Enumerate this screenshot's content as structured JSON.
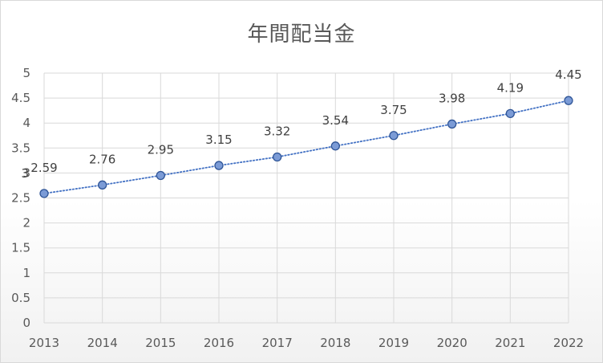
{
  "chart_data": {
    "type": "line",
    "title": "年間配当金",
    "xlabel": "",
    "ylabel": "",
    "categories": [
      "2013",
      "2014",
      "2015",
      "2016",
      "2017",
      "2018",
      "2019",
      "2020",
      "2021",
      "2022"
    ],
    "series": [
      {
        "values": [
          2.59,
          2.76,
          2.95,
          3.15,
          3.32,
          3.54,
          3.75,
          3.98,
          4.19,
          4.45
        ],
        "data_labels": [
          "2.59",
          "2.76",
          "2.95",
          "3.15",
          "3.32",
          "3.54",
          "3.75",
          "3.98",
          "4.19",
          "4.45"
        ],
        "line_color": "#4472c4",
        "line_style": "dotted",
        "marker": "circle",
        "marker_fill": "#7b9bd6",
        "marker_edge": "#2f5597"
      }
    ],
    "ylim": [
      0,
      5
    ],
    "yticks": [
      "0",
      "0.5",
      "1",
      "1.5",
      "2",
      "2.5",
      "3",
      "3.5",
      "4",
      "4.5",
      "5"
    ],
    "grid": true,
    "legend": "none",
    "stray_label": "3"
  },
  "colors": {
    "grid": "#d9d9d9",
    "text": "#595959",
    "border": "#d9d9d9"
  }
}
